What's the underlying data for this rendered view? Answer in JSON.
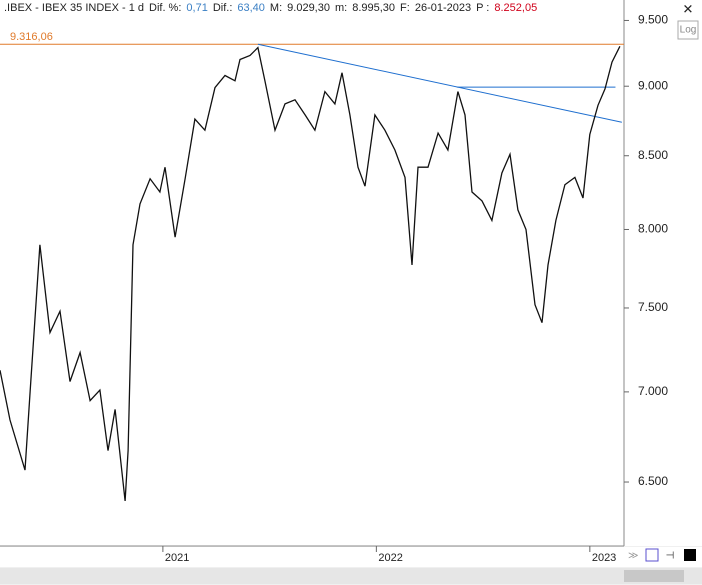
{
  "chart_data": {
    "type": "line",
    "symbol": ".IBEX - IBEX 35 INDEX -  1 d",
    "header_items": [
      {
        "label": "Dif. %:",
        "value": "0,71",
        "color": "#3a7fc4"
      },
      {
        "label": "Dif.:",
        "value": "63,40",
        "color": "#3a7fc4"
      },
      {
        "label": "M:",
        "value": "9.029,30",
        "color": "#222222"
      },
      {
        "label": "m:",
        "value": "8.995,30",
        "color": "#222222"
      },
      {
        "label": "F:",
        "value": "26-01-2023",
        "color": "#222222"
      },
      {
        "label": "P :",
        "value": "8.252,05",
        "color": "#d0021b"
      }
    ],
    "log_button": "Log",
    "log_scale": true,
    "x": [
      2020.237,
      2020.284,
      2020.354,
      2020.378,
      2020.424,
      2020.471,
      2020.518,
      2020.565,
      2020.612,
      2020.659,
      2020.705,
      2020.743,
      2020.776,
      2020.823,
      2020.837,
      2020.86,
      2020.893,
      2020.94,
      2020.986,
      2021.01,
      2021.057,
      2021.104,
      2021.15,
      2021.197,
      2021.244,
      2021.291,
      2021.338,
      2021.361,
      2021.408,
      2021.445,
      2021.478,
      2021.525,
      2021.572,
      2021.619,
      2021.666,
      2021.712,
      2021.759,
      2021.806,
      2021.839,
      2021.876,
      2021.914,
      2021.947,
      2021.993,
      2022.04,
      2022.087,
      2022.134,
      2022.167,
      2022.195,
      2022.242,
      2022.289,
      2022.335,
      2022.382,
      2022.415,
      2022.448,
      2022.495,
      2022.541,
      2022.588,
      2022.626,
      2022.663,
      2022.701,
      2022.743,
      2022.776,
      2022.804,
      2022.841,
      2022.883,
      2022.93,
      2022.968,
      2023.0,
      2023.038,
      2023.071,
      2023.104,
      2023.141
    ],
    "series": [
      {
        "name": "IBEX 35",
        "color": "#111111",
        "values": [
          7126,
          6840,
          6564,
          7000,
          7900,
          7350,
          7480,
          7060,
          7230,
          6950,
          7010,
          6670,
          6900,
          6400,
          6670,
          7900,
          8170,
          8340,
          8250,
          8420,
          7950,
          8340,
          8760,
          8680,
          8990,
          9080,
          9040,
          9200,
          9230,
          9290,
          9040,
          8680,
          8870,
          8900,
          8790,
          8680,
          8960,
          8870,
          9100,
          8790,
          8420,
          8290,
          8790,
          8680,
          8540,
          8350,
          7770,
          8420,
          8420,
          8660,
          8540,
          8960,
          8790,
          8250,
          8190,
          8060,
          8380,
          8510,
          8130,
          8000,
          7520,
          7410,
          7770,
          8060,
          8300,
          8350,
          8210,
          8650,
          8860,
          8980,
          9180,
          9300
        ]
      }
    ],
    "xlim": [
      2020.237,
      2023.16
    ],
    "ylim": [
      6172,
      9582
    ],
    "xticks": [
      2021,
      2022,
      2023
    ],
    "yticks": [
      {
        "value": 6500,
        "label": "6.500"
      },
      {
        "value": 7000,
        "label": "7.000"
      },
      {
        "value": 7500,
        "label": "7.500"
      },
      {
        "value": 8000,
        "label": "8.000"
      },
      {
        "value": 8500,
        "label": "8.500"
      },
      {
        "value": 9000,
        "label": "9.000"
      },
      {
        "value": 9500,
        "label": "9.500"
      }
    ],
    "hlines": [
      {
        "value": 9316.06,
        "label": "9.316,06",
        "color": "#e07a2a",
        "x": [
          2020.237,
          2023.16
        ]
      },
      {
        "value": 8993,
        "color": "#1f6fcf",
        "x": [
          2022.377,
          2023.12
        ]
      }
    ],
    "trendlines": [
      {
        "x": [
          2021.445,
          2023.15
        ],
        "y": [
          9316,
          8737
        ],
        "color": "#1f6fcf"
      }
    ]
  }
}
